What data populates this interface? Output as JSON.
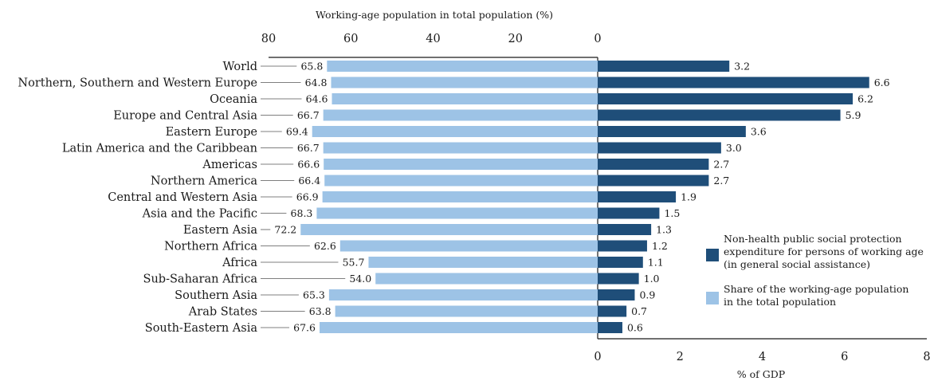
{
  "chart_data": {
    "type": "bar",
    "categories": [
      "World",
      "Northern, Southern and Western Europe",
      "Oceania",
      "Europe and Central Asia",
      "Eastern Europe",
      "Latin America and the Caribbean",
      "Americas",
      "Northern America",
      "Central and Western Asia",
      "Asia and the Pacific",
      "Eastern Asia",
      "Northern Africa",
      "Africa",
      "Sub-Saharan Africa",
      "Southern Asia",
      "Arab States",
      "South-Eastern Asia"
    ],
    "series": [
      {
        "name": "Share of the working-age population in the total population",
        "axis": "top",
        "color": "#9dc3e6",
        "values": [
          65.8,
          64.8,
          64.6,
          66.7,
          69.4,
          66.7,
          66.6,
          66.4,
          66.9,
          68.3,
          72.2,
          62.6,
          55.7,
          54.0,
          65.3,
          63.8,
          67.6
        ],
        "labels": [
          "65.8",
          "64.8",
          "64.6",
          "66.7",
          "69.4",
          "66.7",
          "66.6",
          "66.4",
          "66.9",
          "68.3",
          "72.2",
          "62.6",
          "55.7",
          "54.0",
          "65.3",
          "63.8",
          "67.6"
        ]
      },
      {
        "name": "Non-health public social protection expenditure for persons of working age (in general social assistance)",
        "axis": "bottom",
        "color": "#1f4e79",
        "values": [
          3.2,
          6.6,
          6.2,
          5.9,
          3.6,
          3.0,
          2.7,
          2.7,
          1.9,
          1.5,
          1.3,
          1.2,
          1.1,
          1.0,
          0.9,
          0.7,
          0.6
        ],
        "labels": [
          "3.2",
          "6.6",
          "6.2",
          "5.9",
          "3.6",
          "3.0",
          "2.7",
          "2.7",
          "1.9",
          "1.5",
          "1.3",
          "1.2",
          "1.1",
          "1.0",
          "0.9",
          "0.7",
          "0.6"
        ]
      }
    ],
    "top_axis": {
      "title": "Working-age population in total population (%)",
      "range": [
        0,
        80
      ],
      "ticks": [
        80,
        60,
        40,
        20,
        0
      ],
      "tick_labels": [
        "80",
        "60",
        "40",
        "20",
        "0"
      ],
      "direction": "reversed"
    },
    "bottom_axis": {
      "title": "% of GDP",
      "range": [
        0,
        8
      ],
      "ticks": [
        0,
        2,
        4,
        6,
        8
      ],
      "tick_labels": [
        "0",
        "2",
        "4",
        "6",
        "8"
      ]
    },
    "legend": {
      "placement": "right",
      "entries": [
        {
          "lines": [
            "Non-health public social protection",
            "expenditure for persons of working age",
            "(in general social assistance)"
          ],
          "color": "#1f4e79"
        },
        {
          "lines": [
            "Share of the working-age population",
            "in the total population"
          ],
          "color": "#9dc3e6"
        }
      ]
    },
    "grid": false
  }
}
